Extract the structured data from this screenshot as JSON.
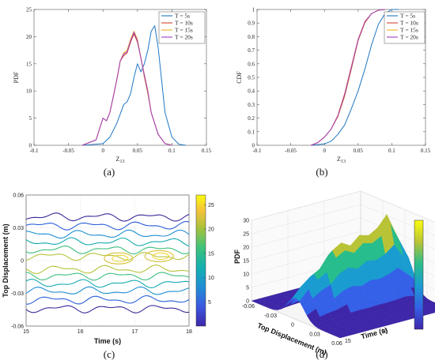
{
  "captions": [
    "(a)",
    "(b)",
    "(c)",
    "(d)"
  ],
  "colors": {
    "blue": "#1f77c4",
    "red": "#d9432b",
    "yellow": "#edb120",
    "purple": "#a03cc4"
  },
  "chart_data": [
    {
      "type": "line",
      "xlabel": "Z",
      "xlabel_sub": "13",
      "ylabel": "PDF",
      "xlim": [
        -0.1,
        0.15
      ],
      "ylim": [
        0,
        25
      ],
      "xticks": [
        -0.1,
        -0.05,
        0,
        0.05,
        0.1,
        0.15
      ],
      "xtick_labels": [
        "-0.1",
        "-0.05",
        "0",
        "0.05",
        "0.1",
        "0.15"
      ],
      "yticks": [
        0,
        5,
        10,
        15,
        20,
        25
      ],
      "ytick_labels": [
        "0",
        "5",
        "10",
        "15",
        "20",
        "25"
      ],
      "legend_position": "top-right",
      "grid": false,
      "series": [
        {
          "name": "T = 5s",
          "color": "#1f77c4",
          "x": [
            -0.03,
            0,
            0.01,
            0.02,
            0.03,
            0.035,
            0.04,
            0.045,
            0.05,
            0.055,
            0.06,
            0.065,
            0.07,
            0.075,
            0.08,
            0.085,
            0.09,
            0.1,
            0.11,
            0.12
          ],
          "y": [
            0,
            0.3,
            1.5,
            4,
            7.5,
            8,
            9.5,
            12.5,
            15,
            13.5,
            15,
            17.5,
            21,
            22,
            18,
            12,
            6,
            1.5,
            0.2,
            0
          ]
        },
        {
          "name": "T = 10s",
          "color": "#d9432b",
          "x": [
            -0.03,
            -0.01,
            -0.005,
            0,
            0.005,
            0.01,
            0.015,
            0.02,
            0.025,
            0.03,
            0.035,
            0.04,
            0.045,
            0.05,
            0.055,
            0.06,
            0.065,
            0.07,
            0.08,
            0.09,
            0.1
          ],
          "y": [
            0,
            1,
            3,
            5,
            4.5,
            6,
            9,
            12,
            15.5,
            16.5,
            17,
            19,
            20.5,
            19,
            16,
            13,
            10,
            6,
            2,
            0.3,
            0
          ]
        },
        {
          "name": "T = 15s",
          "color": "#edb120",
          "x": [
            -0.03,
            -0.01,
            -0.005,
            0,
            0.005,
            0.01,
            0.015,
            0.02,
            0.025,
            0.03,
            0.035,
            0.04,
            0.045,
            0.05,
            0.055,
            0.06,
            0.065,
            0.07,
            0.08,
            0.09,
            0.1
          ],
          "y": [
            0,
            1,
            3,
            5,
            4.5,
            6,
            9,
            12,
            15.5,
            17,
            17.5,
            19.5,
            21,
            19.5,
            16,
            12.5,
            9.5,
            6,
            2,
            0.3,
            0
          ]
        },
        {
          "name": "T = 20s",
          "color": "#a03cc4",
          "x": [
            -0.03,
            -0.01,
            -0.005,
            0,
            0.005,
            0.01,
            0.015,
            0.02,
            0.025,
            0.03,
            0.035,
            0.04,
            0.045,
            0.05,
            0.055,
            0.06,
            0.065,
            0.07,
            0.08,
            0.09,
            0.1
          ],
          "y": [
            0,
            1,
            3,
            5,
            4.5,
            6,
            9,
            12,
            15.5,
            16.8,
            17.2,
            19.2,
            20.8,
            19.2,
            16,
            12.8,
            9.8,
            6,
            2,
            0.3,
            0
          ]
        }
      ]
    },
    {
      "type": "line",
      "xlabel": "Z",
      "xlabel_sub": "13",
      "ylabel": "CDF",
      "xlim": [
        -0.1,
        0.15
      ],
      "ylim": [
        0,
        1
      ],
      "xticks": [
        -0.1,
        -0.05,
        0,
        0.05,
        0.1,
        0.15
      ],
      "xtick_labels": [
        "-0.1",
        "-0.05",
        "0",
        "0.05",
        "0.1",
        "0.15"
      ],
      "yticks": [
        0,
        0.1,
        0.2,
        0.3,
        0.4,
        0.5,
        0.6,
        0.7,
        0.8,
        0.9,
        1
      ],
      "ytick_labels": [
        "0",
        "0.1",
        "0.2",
        "0.3",
        "0.4",
        "0.5",
        "0.6",
        "0.7",
        "0.8",
        "0.9",
        "1"
      ],
      "legend_position": "right",
      "grid": false,
      "series": [
        {
          "name": "T = 5s",
          "color": "#1f77c4",
          "x": [
            -0.02,
            0,
            0.01,
            0.02,
            0.03,
            0.04,
            0.05,
            0.06,
            0.07,
            0.08,
            0.09,
            0.1,
            0.11
          ],
          "y": [
            0,
            0.01,
            0.03,
            0.08,
            0.15,
            0.27,
            0.4,
            0.56,
            0.74,
            0.89,
            0.97,
            1,
            1
          ]
        },
        {
          "name": "T = 10s",
          "color": "#d9432b",
          "x": [
            -0.02,
            -0.01,
            0,
            0.01,
            0.02,
            0.03,
            0.04,
            0.05,
            0.06,
            0.07,
            0.08,
            0.09
          ],
          "y": [
            0,
            0.02,
            0.06,
            0.12,
            0.22,
            0.38,
            0.58,
            0.78,
            0.91,
            0.97,
            0.995,
            1
          ]
        },
        {
          "name": "T = 15s",
          "color": "#edb120",
          "x": [
            -0.02,
            -0.01,
            0,
            0.01,
            0.02,
            0.03,
            0.04,
            0.05,
            0.06,
            0.07,
            0.08,
            0.09
          ],
          "y": [
            0,
            0.02,
            0.06,
            0.12,
            0.21,
            0.36,
            0.56,
            0.77,
            0.9,
            0.97,
            0.995,
            1
          ]
        },
        {
          "name": "T = 20s",
          "color": "#a03cc4",
          "x": [
            -0.02,
            -0.01,
            0,
            0.01,
            0.02,
            0.03,
            0.04,
            0.05,
            0.06,
            0.07,
            0.08,
            0.09
          ],
          "y": [
            0,
            0.02,
            0.06,
            0.12,
            0.215,
            0.37,
            0.57,
            0.775,
            0.905,
            0.97,
            0.995,
            1
          ]
        }
      ]
    },
    {
      "type": "contour",
      "xlabel": "Time (s)",
      "ylabel": "Top Displacement (m)",
      "xlim": [
        15,
        18
      ],
      "ylim": [
        -0.06,
        0.06
      ],
      "xticks": [
        15,
        16,
        17,
        18
      ],
      "xtick_labels": [
        "15",
        "16",
        "17",
        "18"
      ],
      "yticks": [
        -0.06,
        -0.03,
        0,
        0.03,
        0.06
      ],
      "ytick_labels": [
        "-0.06",
        "-0.03",
        "0",
        "0.03",
        "0.06"
      ],
      "colorbar": {
        "ticks": [
          5,
          10,
          15,
          20,
          25
        ],
        "tick_labels": [
          "5",
          "10",
          "15",
          "20",
          "25"
        ],
        "range": [
          0,
          27
        ]
      },
      "contour_bands": [
        {
          "level": 2,
          "offset": 0.042,
          "color": "#3b2a98"
        },
        {
          "level": 5,
          "offset": 0.034,
          "color": "#2c5fd8"
        },
        {
          "level": 8,
          "offset": 0.026,
          "color": "#1f8fd2"
        },
        {
          "level": 12,
          "offset": 0.019,
          "color": "#13aab0"
        },
        {
          "level": 16,
          "offset": 0.012,
          "color": "#3fbf80"
        },
        {
          "level": 20,
          "offset": 0.006,
          "color": "#b6c23a"
        }
      ],
      "hotspots": [
        {
          "t": 16.7,
          "d": 0.002,
          "level": 22
        },
        {
          "t": 17.45,
          "d": 0.004,
          "level": 24
        }
      ]
    },
    {
      "type": "surface",
      "xlabel": "Top Displacement (m)",
      "ylabel": "Time (s)",
      "zlabel": "PDF",
      "xlim": [
        -0.06,
        0.06
      ],
      "ylim": [
        15,
        18
      ],
      "zlim": [
        0,
        30
      ],
      "xtick_labels": [
        "-0.06",
        "-0.03",
        "0",
        "0.03",
        "0.06"
      ],
      "ytick_labels": [
        "15",
        "16",
        "17",
        "18"
      ],
      "ztick_labels": [
        "0",
        "5",
        "10",
        "15",
        "20",
        "25",
        "30"
      ],
      "peak_profile": {
        "t": [
          15,
          15.25,
          15.5,
          15.75,
          16,
          16.25,
          16.5,
          16.75,
          17,
          17.25,
          17.5,
          17.75,
          18
        ],
        "pdf": [
          8,
          12,
          15,
          17,
          22,
          24,
          22,
          25,
          24,
          26,
          30,
          22,
          14
        ]
      }
    }
  ]
}
